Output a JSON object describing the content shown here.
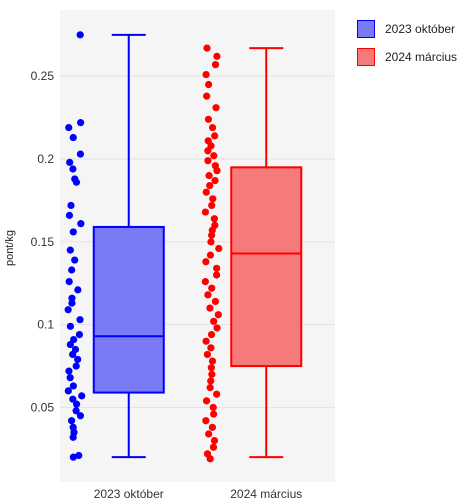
{
  "chart_data": {
    "type": "box",
    "title": "",
    "xlabel": "",
    "ylabel": "pont/kg",
    "ylim": [
      0.005,
      0.29
    ],
    "y_ticks": [
      0.05,
      0.1,
      0.15,
      0.2,
      0.25
    ],
    "y_tick_labels": [
      "0.05",
      "0.1",
      "0.15",
      "0.2",
      "0.25"
    ],
    "grid": true,
    "legend_position": "top-right",
    "categories": [
      "2023 október",
      "2024 március"
    ],
    "series": [
      {
        "name": "2023 október",
        "color": "#0000ff",
        "fill": "#7a7af5",
        "box": {
          "min": 0.02,
          "q1": 0.059,
          "median": 0.093,
          "q3": 0.159,
          "max": 0.275
        },
        "points": [
          0.275,
          0.222,
          0.219,
          0.213,
          0.203,
          0.198,
          0.194,
          0.188,
          0.186,
          0.172,
          0.166,
          0.161,
          0.156,
          0.145,
          0.139,
          0.133,
          0.126,
          0.121,
          0.116,
          0.113,
          0.109,
          0.103,
          0.099,
          0.094,
          0.091,
          0.088,
          0.085,
          0.082,
          0.079,
          0.075,
          0.072,
          0.068,
          0.063,
          0.06,
          0.057,
          0.055,
          0.052,
          0.048,
          0.045,
          0.042,
          0.038,
          0.035,
          0.032,
          0.021,
          0.02
        ]
      },
      {
        "name": "2024 március",
        "color": "#ff0000",
        "fill": "#f57a7a",
        "box": {
          "min": 0.02,
          "q1": 0.075,
          "median": 0.143,
          "q3": 0.195,
          "max": 0.267
        },
        "points": [
          0.267,
          0.262,
          0.257,
          0.251,
          0.245,
          0.238,
          0.231,
          0.224,
          0.219,
          0.214,
          0.211,
          0.208,
          0.205,
          0.202,
          0.199,
          0.196,
          0.193,
          0.19,
          0.187,
          0.184,
          0.18,
          0.176,
          0.172,
          0.168,
          0.164,
          0.16,
          0.157,
          0.154,
          0.15,
          0.146,
          0.142,
          0.138,
          0.134,
          0.13,
          0.126,
          0.122,
          0.118,
          0.114,
          0.11,
          0.106,
          0.102,
          0.098,
          0.094,
          0.09,
          0.086,
          0.082,
          0.078,
          0.074,
          0.07,
          0.066,
          0.062,
          0.058,
          0.054,
          0.05,
          0.046,
          0.042,
          0.038,
          0.034,
          0.03,
          0.026,
          0.022,
          0.019
        ]
      }
    ]
  }
}
